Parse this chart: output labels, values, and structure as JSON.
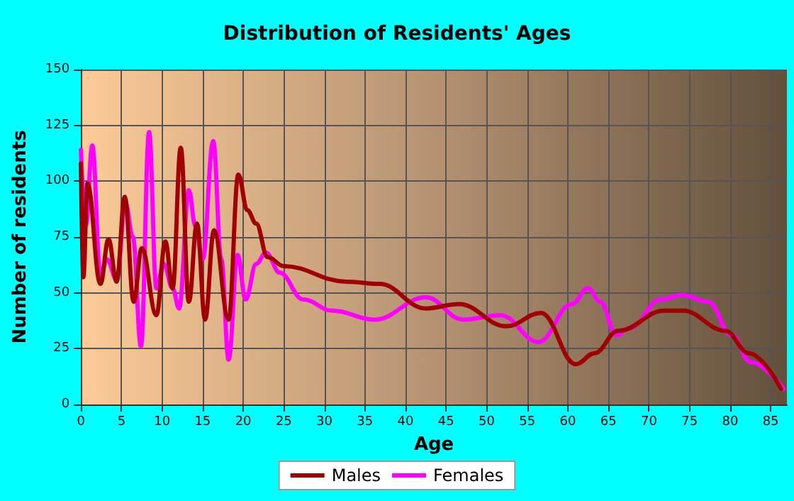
{
  "chart_data": {
    "type": "line",
    "title": "Distribution of Residents' Ages",
    "xlabel": "Age",
    "ylabel": "Number of residents",
    "xlim": [
      0,
      87
    ],
    "xticks": [
      0,
      5,
      10,
      15,
      20,
      25,
      30,
      35,
      40,
      45,
      50,
      55,
      60,
      65,
      70,
      75,
      80,
      85
    ],
    "ylim": [
      0,
      150
    ],
    "yticks": [
      0,
      25,
      50,
      75,
      100,
      125,
      150
    ],
    "grid": true,
    "legend": "bottom",
    "marker": "none",
    "line_style": "solid",
    "series": [
      {
        "name": "Males",
        "color": "#a00000",
        "x": [
          0,
          0.3,
          0.8,
          2.4,
          3.4,
          4.4,
          5.4,
          6.5,
          7.5,
          9.3,
          10.4,
          11.3,
          12.3,
          13.3,
          14.3,
          15.3,
          16.4,
          18.2,
          19.4,
          20.5,
          21.6,
          23,
          25,
          32.7,
          36.8,
          42.5,
          46.6,
          52.4,
          56.7,
          61,
          63.3,
          66.2,
          71.9,
          74.2,
          79.4,
          82.3,
          86.3
        ],
        "values": [
          108,
          57,
          99,
          54,
          74,
          55,
          93,
          46,
          70,
          40,
          73,
          52,
          115,
          46,
          81,
          38,
          78,
          38,
          103,
          87,
          81,
          66,
          62,
          55,
          54,
          43,
          45,
          35,
          41,
          18,
          23,
          33,
          42,
          42,
          33,
          23,
          7
        ]
      },
      {
        "name": "Females",
        "color": "#ff00ff",
        "x": [
          0,
          0.6,
          1.4,
          2.4,
          3.2,
          4.4,
          5.5,
          6.4,
          7.4,
          8.4,
          9.3,
          10.2,
          11.3,
          12.1,
          13.3,
          14.1,
          15,
          16.3,
          17.3,
          18.2,
          19.3,
          20.3,
          21.6,
          22.8,
          24.5,
          27.4,
          31,
          36.2,
          42.5,
          47.1,
          51.7,
          56.4,
          60.5,
          62.5,
          64,
          66,
          67.5,
          71.5,
          74.1,
          77.3,
          80.2,
          82.5,
          86.6
        ],
        "values": [
          114,
          80,
          116,
          58,
          65,
          56,
          90,
          75,
          26,
          122,
          52,
          63,
          52,
          43,
          96,
          80,
          65,
          118,
          65,
          20,
          67,
          47,
          63,
          68,
          59,
          47,
          42,
          38,
          48,
          38,
          40,
          28,
          45,
          52,
          46,
          31,
          34,
          47,
          49,
          46,
          31,
          19,
          7
        ]
      }
    ]
  }
}
